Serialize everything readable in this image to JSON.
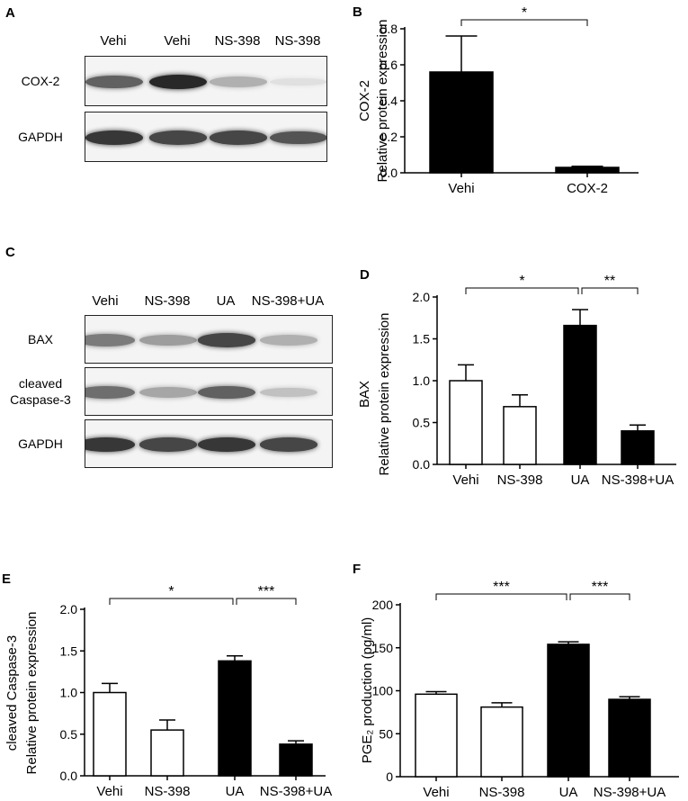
{
  "panels": {
    "A": {
      "letter": "A",
      "lanes": [
        "Vehi",
        "Vehi",
        "NS-398",
        "NS-398"
      ],
      "rows": [
        {
          "label": "COX-2",
          "intensity": [
            0.8,
            1.0,
            0.45,
            0.12
          ]
        },
        {
          "label": "GAPDH",
          "intensity": [
            0.95,
            0.9,
            0.9,
            0.85
          ]
        }
      ]
    },
    "C": {
      "letter": "C",
      "lanes": [
        "Vehi",
        "NS-398",
        "UA",
        "NS-398+UA"
      ],
      "rows": [
        {
          "label": "BAX",
          "intensity": [
            0.7,
            0.55,
            0.9,
            0.45
          ]
        },
        {
          "label": "cleaved\nCaspase-3",
          "intensity": [
            0.75,
            0.5,
            0.8,
            0.35
          ]
        },
        {
          "label": "GAPDH",
          "intensity": [
            0.95,
            0.9,
            0.95,
            0.9
          ]
        }
      ]
    }
  },
  "chart_data": [
    {
      "id": "B",
      "letter": "B",
      "type": "bar",
      "categories": [
        "Vehi",
        "COX-2"
      ],
      "values": [
        0.56,
        0.03
      ],
      "errors": [
        0.2,
        0.006
      ],
      "fills": [
        "#000000",
        "#000000"
      ],
      "ylabel_lines": [
        "COX-2",
        "Relative protein expression"
      ],
      "ylim": [
        0,
        0.8
      ],
      "yticks": [
        "0.0",
        "0.2",
        "0.4",
        "0.6",
        "0.8"
      ],
      "significance": [
        {
          "from": 0,
          "to": 1,
          "label": "*"
        }
      ]
    },
    {
      "id": "D",
      "letter": "D",
      "type": "bar",
      "categories": [
        "Vehi",
        "NS-398",
        "UA",
        "NS-398+UA"
      ],
      "values": [
        1.0,
        0.69,
        1.66,
        0.4
      ],
      "errors": [
        0.19,
        0.14,
        0.19,
        0.07
      ],
      "fills": [
        "#ffffff",
        "#ffffff",
        "#000000",
        "#000000"
      ],
      "ylabel_lines": [
        "BAX",
        "Relative protein expression"
      ],
      "ylim": [
        0,
        2.0
      ],
      "yticks": [
        "0.0",
        "0.5",
        "1.0",
        "1.5",
        "2.0"
      ],
      "significance": [
        {
          "from": 0,
          "to": 2,
          "label": "*"
        },
        {
          "from": 2,
          "to": 3,
          "label": "**"
        }
      ]
    },
    {
      "id": "E",
      "letter": "E",
      "type": "bar",
      "categories": [
        "Vehi",
        "NS-398",
        "UA",
        "NS-398+UA"
      ],
      "values": [
        1.0,
        0.55,
        1.38,
        0.38
      ],
      "errors": [
        0.11,
        0.12,
        0.06,
        0.04
      ],
      "fills": [
        "#ffffff",
        "#ffffff",
        "#000000",
        "#000000"
      ],
      "ylabel_lines": [
        "cleaved Caspase-3",
        "Relative protein expression"
      ],
      "ylim": [
        0,
        2.0
      ],
      "yticks": [
        "0.0",
        "0.5",
        "1.0",
        "1.5",
        "2.0"
      ],
      "significance": [
        {
          "from": 0,
          "to": 2,
          "label": "*"
        },
        {
          "from": 2,
          "to": 3,
          "label": "***"
        }
      ]
    },
    {
      "id": "F",
      "letter": "F",
      "type": "bar",
      "categories": [
        "Vehi",
        "NS-398",
        "UA",
        "NS-398+UA"
      ],
      "values": [
        96,
        81,
        154,
        90
      ],
      "errors": [
        3,
        5,
        3,
        3
      ],
      "fills": [
        "#ffffff",
        "#ffffff",
        "#000000",
        "#000000"
      ],
      "ylabel_lines": [
        "PGE₂ production (pg/ml)"
      ],
      "ylim": [
        0,
        200
      ],
      "yticks": [
        "0",
        "50",
        "100",
        "150",
        "200"
      ],
      "significance": [
        {
          "from": 0,
          "to": 2,
          "label": "***"
        },
        {
          "from": 2,
          "to": 3,
          "label": "***"
        }
      ]
    }
  ]
}
